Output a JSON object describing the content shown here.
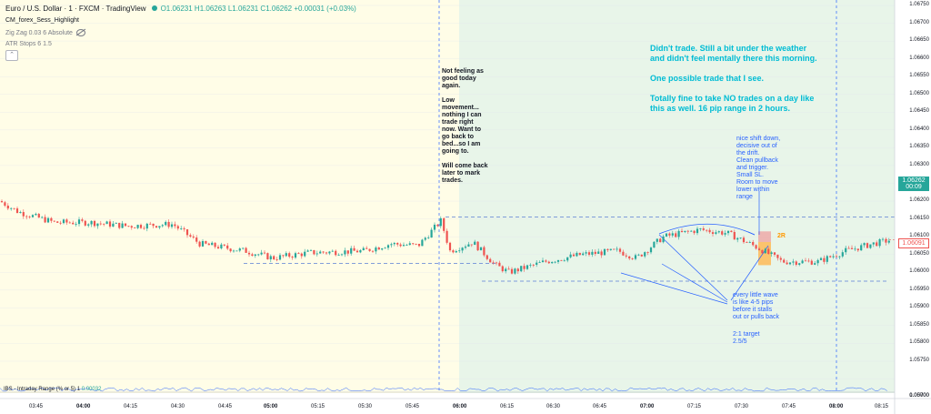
{
  "header": {
    "title": "Euro / U.S. Dollar · 1 · FXCM · TradingView",
    "values": "O1.06231 H1.06263 L1.06231 C1.06262 +0.00031 (+0.03%)"
  },
  "indicators": [
    {
      "label": "CM_forex_Sess_Highlight",
      "hidden": false
    },
    {
      "label": "Zig Zag 0.03 6 Absolute",
      "hidden": true
    },
    {
      "label": "ATR Stops 6 1.5",
      "hidden": true
    }
  ],
  "collapse_icon": "chevron-up-icon",
  "notes": {
    "morning": "Not feeling as\ngood today\nagain.\n\nLow\nmovement...\nnothing I can\ntrade right\nnow. Want to\ngo back to\nbed...so I am\ngoing to.\n\nWill come back\nlater to mark\ntrades.",
    "summary": "Didn't trade. Still a bit under the weather\nand didn't feel mentally there this morning.\n\nOne possible trade that I see.\n\nTotally fine to take NO trades on a day like\nthis as well. 16 pip range in 2 hours.",
    "shift": "nice shift down,\ndecisive out of\nthe drift.\nClean pullback\nand trigger.\nSmall SL.\nRoom to move\nlower within\nrange",
    "wave": "every little wave\nis like 4-5 pips\nbefore it stalls\nout or pulls back",
    "target": "2:1 target\n2.5/5",
    "r_label": "2R"
  },
  "price_axis": [
    "1.06750",
    "1.06700",
    "1.06650",
    "1.06600",
    "1.06550",
    "1.06500",
    "1.06450",
    "1.06400",
    "1.06350",
    "1.06300",
    "1.06250",
    "1.06200",
    "1.06150",
    "1.06100",
    "1.06050",
    "1.06000",
    "1.05950",
    "1.05900",
    "1.05850",
    "1.05800",
    "1.05750",
    "1.05700",
    "0.00000"
  ],
  "last_price": {
    "value": "1.06262",
    "countdown": "00:09"
  },
  "marker_price": "1.06091",
  "time_axis": [
    "03:45",
    "04:00",
    "04:15",
    "04:30",
    "04:45",
    "05:00",
    "05:15",
    "05:30",
    "05:45",
    "06:00",
    "06:15",
    "06:30",
    "06:45",
    "07:00",
    "07:15",
    "07:30",
    "07:45",
    "08:00",
    "08:15"
  ],
  "ibs": {
    "label": "IBS - Intraday Range (% or 5) 1",
    "value": "0.00032"
  },
  "colors": {
    "up": "#26a69a",
    "down": "#ef5350",
    "asia_bg": "#fffde7",
    "london_bg": "#e8f5e9"
  }
}
